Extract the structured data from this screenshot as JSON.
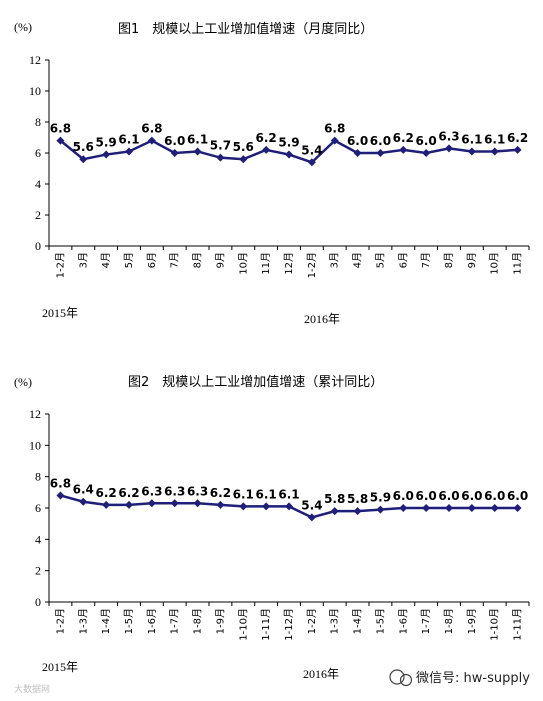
{
  "chart_data": [
    {
      "type": "line",
      "title": "图1　规模以上工业增加值增速（月度同比）",
      "unit": "(%)",
      "ylim": [
        0,
        12
      ],
      "yticks": [
        0,
        2,
        4,
        6,
        8,
        10,
        12
      ],
      "categories": [
        "1-2月",
        "3月",
        "4月",
        "5月",
        "6月",
        "7月",
        "8月",
        "9月",
        "10月",
        "11月",
        "12月",
        "1-2月",
        "3月",
        "4月",
        "5月",
        "6月",
        "7月",
        "8月",
        "9月",
        "10月",
        "11月"
      ],
      "values": [
        6.8,
        5.6,
        5.9,
        6.1,
        6.8,
        6.0,
        6.1,
        5.7,
        5.6,
        6.2,
        5.9,
        5.4,
        6.8,
        6.0,
        6.0,
        6.2,
        6.0,
        6.3,
        6.1,
        6.1,
        6.2
      ],
      "value_labels": [
        "6.8",
        "5.6",
        "5.9",
        "6.1",
        "6.8",
        "6.0",
        "6.1",
        "5.7",
        "5.6",
        "6.2",
        "5.9",
        "5.4",
        "6.8",
        "6.0",
        "6.0",
        "6.2",
        "6.0",
        "6.3",
        "6.1",
        "6.1",
        "6.2"
      ],
      "year_labels": [
        "2015年",
        "2016年"
      ],
      "grid": false,
      "legend": "none",
      "line_color": "#1f1f7a"
    },
    {
      "type": "line",
      "title": "图2　规模以上工业增加值增速（累计同比）",
      "unit": "(%)",
      "ylim": [
        0,
        12
      ],
      "yticks": [
        0,
        2,
        4,
        6,
        8,
        10,
        12
      ],
      "categories": [
        "1-2月",
        "1-3月",
        "1-4月",
        "1-5月",
        "1-6月",
        "1-7月",
        "1-8月",
        "1-9月",
        "1-10月",
        "1-11月",
        "1-12月",
        "1-2月",
        "1-3月",
        "1-4月",
        "1-5月",
        "1-6月",
        "1-7月",
        "1-8月",
        "1-9月",
        "1-10月",
        "1-11月"
      ],
      "values": [
        6.8,
        6.4,
        6.2,
        6.2,
        6.3,
        6.3,
        6.3,
        6.2,
        6.1,
        6.1,
        6.1,
        5.4,
        5.8,
        5.8,
        5.9,
        6.0,
        6.0,
        6.0,
        6.0,
        6.0,
        6.0
      ],
      "value_labels": [
        "6.8",
        "6.4",
        "6.2",
        "6.2",
        "6.3",
        "6.3",
        "6.3",
        "6.2",
        "6.1",
        "6.1",
        "6.1",
        "5.4",
        "5.8",
        "5.8",
        "5.9",
        "6.0",
        "6.0",
        "6.0",
        "6.0",
        "6.0",
        "6.0"
      ],
      "year_labels": [
        "2015年",
        "2016年"
      ],
      "grid": false,
      "legend": "none",
      "line_color": "#1f1f7a"
    }
  ],
  "watermark": "大数据网",
  "wechat_id": "微信号: hw-supply"
}
